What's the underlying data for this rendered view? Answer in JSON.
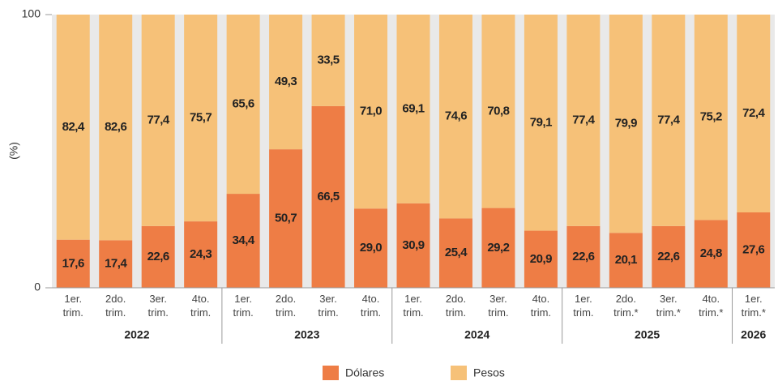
{
  "chart_data": {
    "type": "stacked_bar",
    "ylabel": "(%)",
    "ylim": [
      0,
      100
    ],
    "yticks": [
      0,
      100
    ],
    "groups": [
      {
        "name": "2022",
        "categories": [
          "1er. trim.",
          "2do. trim.",
          "3er. trim.",
          "4to. trim."
        ]
      },
      {
        "name": "2023",
        "categories": [
          "1er. trim.",
          "2do. trim.",
          "3er. trim.",
          "4to. trim."
        ]
      },
      {
        "name": "2024",
        "categories": [
          "1er. trim.",
          "2do. trim.",
          "3er. trim.",
          "4to. trim."
        ]
      },
      {
        "name": "2025",
        "categories": [
          "1er. trim.",
          "2do. trim.*",
          "3er. trim.*",
          "4to. trim.*"
        ]
      },
      {
        "name": "2026",
        "categories": [
          "1er. trim.*"
        ]
      }
    ],
    "series": [
      {
        "name": "Dólares",
        "color": "#ee7d45",
        "values": [
          17.6,
          17.4,
          22.6,
          24.3,
          34.4,
          50.7,
          66.5,
          29.0,
          30.9,
          25.4,
          29.2,
          20.9,
          22.6,
          20.1,
          22.6,
          24.8,
          27.6
        ],
        "value_labels": [
          "17,6",
          "17,4",
          "22,6",
          "24,3",
          "34,4",
          "50,7",
          "66,5",
          "29,0",
          "30,9",
          "25,4",
          "29,2",
          "20,9",
          "22,6",
          "20,1",
          "22,6",
          "24,8",
          "27,6"
        ]
      },
      {
        "name": "Pesos",
        "color": "#f6c178",
        "values": [
          82.4,
          82.6,
          77.4,
          75.7,
          65.6,
          49.3,
          33.5,
          71.0,
          69.1,
          74.6,
          70.8,
          79.1,
          77.4,
          79.9,
          77.4,
          75.2,
          72.4
        ],
        "value_labels": [
          "82,4",
          "82,6",
          "77,4",
          "75,7",
          "65,6",
          "49,3",
          "33,5",
          "71,0",
          "69,1",
          "74,6",
          "70,8",
          "79,1",
          "77,4",
          "79,9",
          "77,4",
          "75,2",
          "72,4"
        ]
      }
    ]
  }
}
